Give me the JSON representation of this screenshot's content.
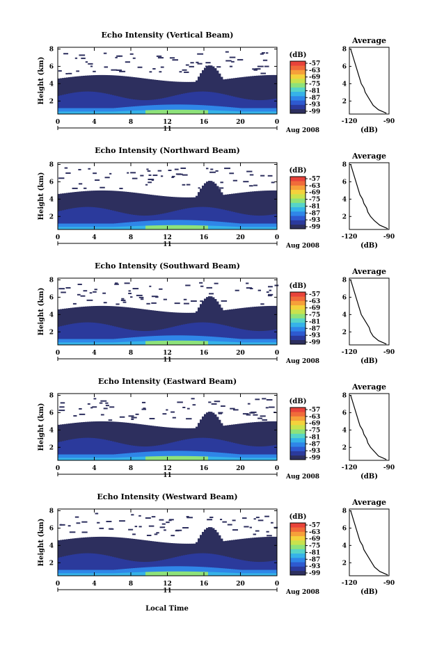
{
  "figure": {
    "xlabel": "Local Time"
  },
  "colorbar": {
    "unit": "(dB)",
    "ticks": [
      "-57",
      "-63",
      "-69",
      "-75",
      "-81",
      "-87",
      "-93",
      "-99"
    ],
    "colors": [
      "#2d2f5e",
      "#2b3a9c",
      "#2e5ad0",
      "#2f86e8",
      "#36b3e8",
      "#56d4c8",
      "#8ee27a",
      "#c9e24d",
      "#f4d23c",
      "#f6a03a",
      "#f06b3a",
      "#e8433a"
    ]
  },
  "chart_data": [
    {
      "type": "heatmap",
      "title": "Echo Intensity (Vertical Beam)",
      "ylabel": "Height (km)",
      "xlabel": "",
      "x_ticks": [
        "0",
        "4",
        "8",
        "12",
        "16",
        "20",
        "0"
      ],
      "xlim": [
        0,
        24
      ],
      "y_ticks": [
        "2",
        "4",
        "6",
        "8"
      ],
      "ylim": [
        0.5,
        8.2
      ],
      "date_day": "11",
      "date_month": "Aug 2008",
      "colorbar_range": [
        -99,
        -57
      ],
      "average": {
        "title": "Average",
        "xlabel": "(dB)",
        "x_ticks": [
          "-120",
          "-90"
        ],
        "xlim": [
          -120,
          -90
        ],
        "y_ticks": [
          "2",
          "4",
          "6",
          "8"
        ],
        "ylim": [
          0.5,
          8.2
        ],
        "profile": [
          [
            0.6,
            -92
          ],
          [
            1.0,
            -98
          ],
          [
            1.5,
            -102
          ],
          [
            2.0,
            -104
          ],
          [
            2.5,
            -106
          ],
          [
            3.0,
            -108
          ],
          [
            3.5,
            -109
          ],
          [
            4.0,
            -111
          ],
          [
            4.5,
            -112
          ],
          [
            5.0,
            -113
          ],
          [
            5.5,
            -114
          ],
          [
            6.0,
            -115
          ],
          [
            6.5,
            -116
          ],
          [
            7.0,
            -117
          ],
          [
            7.5,
            -118
          ],
          [
            8.0,
            -119
          ]
        ]
      }
    },
    {
      "type": "heatmap",
      "title": "Echo Intensity (Northward Beam)",
      "ylabel": "Height (km)",
      "xlabel": "",
      "x_ticks": [
        "0",
        "4",
        "8",
        "12",
        "16",
        "20",
        "0"
      ],
      "xlim": [
        0,
        24
      ],
      "y_ticks": [
        "2",
        "4",
        "6",
        "8"
      ],
      "ylim": [
        0.5,
        8.2
      ],
      "date_day": "11",
      "date_month": "Aug 2008",
      "colorbar_range": [
        -99,
        -57
      ],
      "average": {
        "title": "Average",
        "xlabel": "(dB)",
        "x_ticks": [
          "-120",
          "-90"
        ],
        "xlim": [
          -120,
          -90
        ],
        "y_ticks": [
          "2",
          "4",
          "6",
          "8"
        ],
        "ylim": [
          0.5,
          8.2
        ],
        "profile": [
          [
            0.6,
            -91
          ],
          [
            1.0,
            -97
          ],
          [
            1.5,
            -101
          ],
          [
            2.0,
            -104
          ],
          [
            2.5,
            -106
          ],
          [
            3.0,
            -107
          ],
          [
            3.5,
            -109
          ],
          [
            4.0,
            -110
          ],
          [
            4.5,
            -112
          ],
          [
            5.0,
            -113
          ],
          [
            5.5,
            -114
          ],
          [
            6.0,
            -115
          ],
          [
            6.5,
            -116
          ],
          [
            7.0,
            -117
          ],
          [
            7.5,
            -118
          ],
          [
            8.0,
            -119
          ]
        ]
      }
    },
    {
      "type": "heatmap",
      "title": "Echo Intensity (Southward Beam)",
      "ylabel": "Height (km)",
      "xlabel": "",
      "x_ticks": [
        "0",
        "4",
        "8",
        "12",
        "16",
        "20",
        "0"
      ],
      "xlim": [
        0,
        24
      ],
      "y_ticks": [
        "2",
        "4",
        "6",
        "8"
      ],
      "ylim": [
        0.5,
        8.2
      ],
      "date_day": "11",
      "date_month": "Aug 2008",
      "colorbar_range": [
        -99,
        -57
      ],
      "average": {
        "title": "Average",
        "xlabel": "(dB)",
        "x_ticks": [
          "-120",
          "-90"
        ],
        "xlim": [
          -120,
          -90
        ],
        "y_ticks": [
          "2",
          "4",
          "6",
          "8"
        ],
        "ylim": [
          0.5,
          8.2
        ],
        "profile": [
          [
            0.6,
            -92
          ],
          [
            1.0,
            -98
          ],
          [
            1.5,
            -102
          ],
          [
            2.0,
            -104
          ],
          [
            2.5,
            -105
          ],
          [
            3.0,
            -107
          ],
          [
            3.5,
            -109
          ],
          [
            4.0,
            -111
          ],
          [
            4.5,
            -112
          ],
          [
            5.0,
            -113
          ],
          [
            5.5,
            -114
          ],
          [
            6.0,
            -115
          ],
          [
            6.5,
            -116
          ],
          [
            7.0,
            -117
          ],
          [
            7.5,
            -118
          ],
          [
            8.0,
            -119
          ]
        ]
      }
    },
    {
      "type": "heatmap",
      "title": "Echo Intensity (Eastward Beam)",
      "ylabel": "Height (km)",
      "xlabel": "",
      "x_ticks": [
        "0",
        "4",
        "8",
        "12",
        "16",
        "20",
        "0"
      ],
      "xlim": [
        0,
        24
      ],
      "y_ticks": [
        "2",
        "4",
        "6",
        "8"
      ],
      "ylim": [
        0.5,
        8.2
      ],
      "date_day": "11",
      "date_month": "Aug 2008",
      "colorbar_range": [
        -99,
        -57
      ],
      "average": {
        "title": "Average",
        "xlabel": "(dB)",
        "x_ticks": [
          "-120",
          "-90"
        ],
        "xlim": [
          -120,
          -90
        ],
        "y_ticks": [
          "2",
          "4",
          "6",
          "8"
        ],
        "ylim": [
          0.5,
          8.2
        ],
        "profile": [
          [
            0.6,
            -92
          ],
          [
            1.0,
            -98
          ],
          [
            1.5,
            -101
          ],
          [
            2.0,
            -104
          ],
          [
            2.5,
            -106
          ],
          [
            3.0,
            -107
          ],
          [
            3.5,
            -109
          ],
          [
            4.0,
            -110
          ],
          [
            4.5,
            -112
          ],
          [
            5.0,
            -113
          ],
          [
            5.5,
            -114
          ],
          [
            6.0,
            -115
          ],
          [
            6.5,
            -116
          ],
          [
            7.0,
            -117
          ],
          [
            7.5,
            -118
          ],
          [
            8.0,
            -119
          ]
        ]
      }
    },
    {
      "type": "heatmap",
      "title": "Echo Intensity (Westward Beam)",
      "ylabel": "Height (km)",
      "xlabel": "Local Time",
      "x_ticks": [
        "0",
        "4",
        "8",
        "12",
        "16",
        "20",
        "0"
      ],
      "xlim": [
        0,
        24
      ],
      "y_ticks": [
        "2",
        "4",
        "6",
        "8"
      ],
      "ylim": [
        0.5,
        8.2
      ],
      "date_day": "11",
      "date_month": "Aug 2008",
      "colorbar_range": [
        -99,
        -57
      ],
      "average": {
        "title": "Average",
        "xlabel": "(dB)",
        "x_ticks": [
          "-120",
          "-90"
        ],
        "xlim": [
          -120,
          -90
        ],
        "y_ticks": [
          "2",
          "4",
          "6",
          "8"
        ],
        "ylim": [
          0.5,
          8.2
        ],
        "profile": [
          [
            0.6,
            -91
          ],
          [
            1.0,
            -97
          ],
          [
            1.5,
            -101
          ],
          [
            2.0,
            -103
          ],
          [
            2.5,
            -105
          ],
          [
            3.0,
            -107
          ],
          [
            3.5,
            -109
          ],
          [
            4.0,
            -110
          ],
          [
            4.5,
            -112
          ],
          [
            5.0,
            -113
          ],
          [
            5.5,
            -114
          ],
          [
            6.0,
            -115
          ],
          [
            6.5,
            -116
          ],
          [
            7.0,
            -117
          ],
          [
            7.5,
            -118
          ],
          [
            8.0,
            -119
          ]
        ]
      }
    }
  ]
}
